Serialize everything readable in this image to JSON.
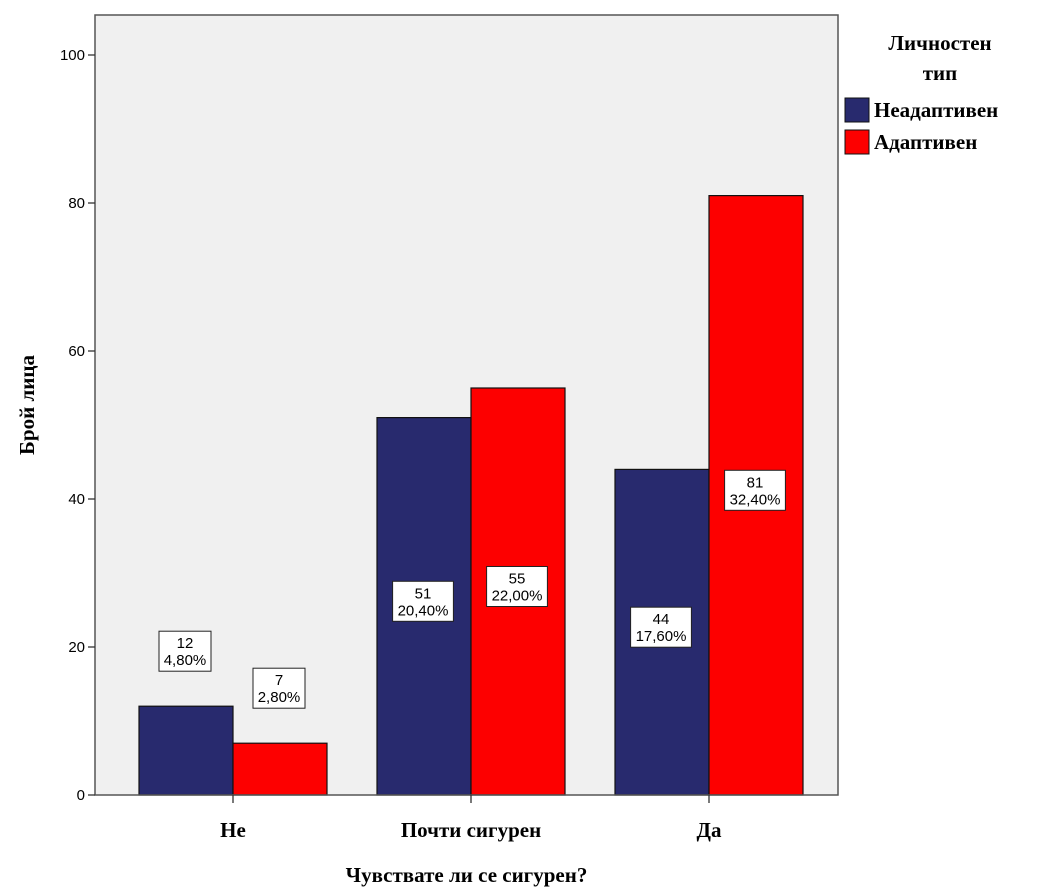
{
  "chart_data": {
    "type": "bar",
    "categories": [
      "Не",
      "Почти сигурен",
      "Да"
    ],
    "series": [
      {
        "name": "Неадаптивен",
        "color": "#282a6e",
        "values": [
          12,
          51,
          44
        ],
        "labels": [
          "12",
          "51",
          "44"
        ],
        "percents": [
          "4,80%",
          "20,40%",
          "17,60%"
        ]
      },
      {
        "name": "Адаптивен",
        "color": "#fd0000",
        "values": [
          7,
          55,
          81
        ],
        "labels": [
          "7",
          "55",
          "81"
        ],
        "percents": [
          "2,80%",
          "22,00%",
          "32,40%"
        ]
      }
    ],
    "xlabel": "Чувствате ли се сигурен?",
    "ylabel": "Брой лица",
    "ylim": [
      0,
      100
    ],
    "yticks": [
      0,
      20,
      40,
      60,
      80,
      100
    ],
    "plot_background": "#f0f0f0",
    "legend": {
      "title_lines": [
        "Личностен",
        "тип"
      ],
      "placement": "top-right, outside plot"
    },
    "grid": false
  }
}
